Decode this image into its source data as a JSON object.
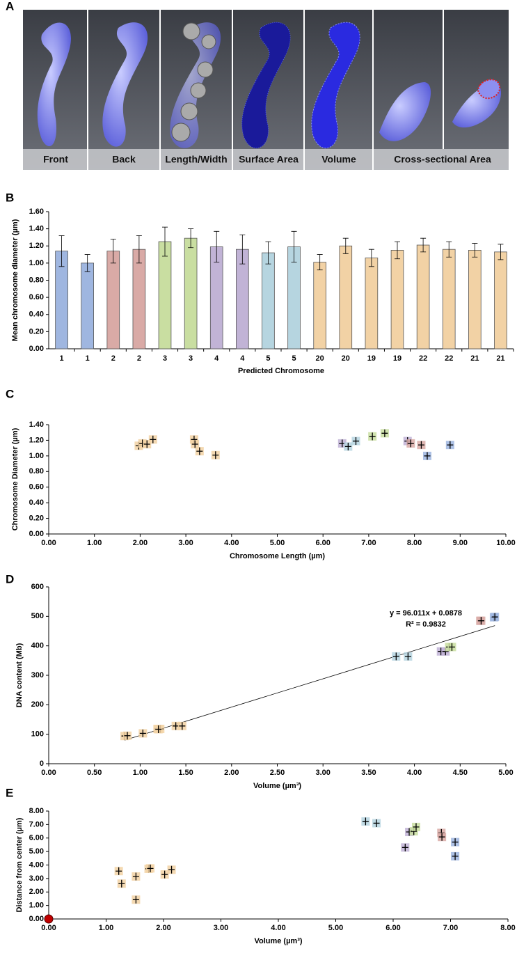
{
  "panel_a": {
    "label": "A",
    "captions": [
      "Front",
      "Back",
      "Length/Width",
      "Surface Area",
      "Volume",
      "Cross-sectional Area"
    ]
  },
  "chart_data": [
    {
      "type": "bar",
      "panel_label": "B",
      "y_label": "Mean chromosome diameter (µm)",
      "x_label": "Predicted Chromosome",
      "categories": [
        "1",
        "1",
        "2",
        "2",
        "3",
        "3",
        "4",
        "4",
        "5",
        "5",
        "20",
        "20",
        "19",
        "19",
        "22",
        "22",
        "21",
        "21"
      ],
      "values": [
        1.14,
        1.0,
        1.14,
        1.16,
        1.25,
        1.29,
        1.19,
        1.16,
        1.12,
        1.19,
        1.01,
        1.2,
        1.06,
        1.15,
        1.21,
        1.16,
        1.15,
        1.13
      ],
      "errors": [
        0.18,
        0.1,
        0.14,
        0.16,
        0.17,
        0.11,
        0.18,
        0.17,
        0.13,
        0.18,
        0.09,
        0.09,
        0.1,
        0.1,
        0.08,
        0.09,
        0.08,
        0.09
      ],
      "colors": [
        "#9fb6e0",
        "#9fb6e0",
        "#d9aaa6",
        "#d9aaa6",
        "#c9dea1",
        "#c9dea1",
        "#c1b3d6",
        "#c1b3d6",
        "#b6d5e0",
        "#b6d5e0",
        "#f2d2a5",
        "#f2d2a5",
        "#f2d2a5",
        "#f2d2a5",
        "#f2d2a5",
        "#f2d2a5",
        "#f2d2a5",
        "#f2d2a5"
      ],
      "ylim": [
        0,
        1.6
      ],
      "yticks": [
        {
          "value": 0,
          "label": "0.00"
        },
        {
          "value": 0.2,
          "label": "0.20"
        },
        {
          "value": 0.4,
          "label": "0.40"
        },
        {
          "value": 0.6,
          "label": "0.60"
        },
        {
          "value": 0.8,
          "label": "0.80"
        },
        {
          "value": 1,
          "label": "1.00"
        },
        {
          "value": 1.2,
          "label": "1.20"
        },
        {
          "value": 1.4,
          "label": "1.40"
        },
        {
          "value": 1.6,
          "label": "1.60"
        }
      ]
    },
    {
      "type": "scatter",
      "panel_label": "C",
      "y_label": "Chromosome Diameter (µm)",
      "x_label": "Chromosome Length (µm)",
      "x": [
        1.97,
        2.05,
        2.15,
        2.28,
        3.18,
        3.2,
        3.3,
        3.65,
        6.42,
        6.55,
        6.72,
        7.08,
        7.35,
        7.85,
        7.92,
        8.15,
        8.28,
        8.78
      ],
      "values": [
        1.13,
        1.16,
        1.15,
        1.21,
        1.21,
        1.15,
        1.06,
        1.01,
        1.16,
        1.12,
        1.19,
        1.25,
        1.29,
        1.19,
        1.16,
        1.14,
        1.0,
        1.14
      ],
      "colors": [
        "#f2d2a5",
        "#f2d2a5",
        "#f2d2a5",
        "#f2d2a5",
        "#f2d2a5",
        "#f2d2a5",
        "#f2d2a5",
        "#f2d2a5",
        "#c1b3d6",
        "#b6d5e0",
        "#b6d5e0",
        "#c9dea1",
        "#c9dea1",
        "#c1b3d6",
        "#d9aaa6",
        "#d9aaa6",
        "#9fb6e0",
        "#9fb6e0"
      ],
      "xlim": [
        0,
        10
      ],
      "ylim": [
        0,
        1.4
      ],
      "xticks": [
        {
          "value": 0,
          "label": "0.00"
        },
        {
          "value": 1,
          "label": "1.00"
        },
        {
          "value": 2,
          "label": "2.00"
        },
        {
          "value": 3,
          "label": "3.00"
        },
        {
          "value": 4,
          "label": "4.00"
        },
        {
          "value": 5,
          "label": "5.00"
        },
        {
          "value": 6,
          "label": "6.00"
        },
        {
          "value": 7,
          "label": "7.00"
        },
        {
          "value": 8,
          "label": "8.00"
        },
        {
          "value": 9,
          "label": "9.00"
        },
        {
          "value": 10,
          "label": "10.00"
        }
      ],
      "yticks": [
        {
          "value": 0,
          "label": "0.00"
        },
        {
          "value": 0.2,
          "label": "0.20"
        },
        {
          "value": 0.4,
          "label": "0.40"
        },
        {
          "value": 0.6,
          "label": "0.60"
        },
        {
          "value": 0.8,
          "label": "0.80"
        },
        {
          "value": 1,
          "label": "1.00"
        },
        {
          "value": 1.2,
          "label": "1.20"
        },
        {
          "value": 1.4,
          "label": "1.40"
        }
      ]
    },
    {
      "type": "scatter",
      "panel_label": "D",
      "y_label": "DNA content (Mb)",
      "x_label": "Volume (µm³)",
      "x": [
        0.83,
        0.86,
        1.03,
        1.19,
        1.22,
        1.39,
        1.46,
        1.2,
        3.8,
        3.93,
        4.29,
        4.34,
        4.38,
        4.41,
        4.72,
        4.73,
        4.87,
        4.88
      ],
      "values": [
        94,
        95,
        103,
        118,
        118,
        128,
        128,
        117,
        364,
        364,
        381,
        381,
        396,
        396,
        485,
        485,
        497,
        498
      ],
      "colors": [
        "#f2d2a5",
        "#f2d2a5",
        "#f2d2a5",
        "#f2d2a5",
        "#f2d2a5",
        "#f2d2a5",
        "#f2d2a5",
        "#f2d2a5",
        "#b6d5e0",
        "#b6d5e0",
        "#c1b3d6",
        "#c1b3d6",
        "#c9dea1",
        "#c9dea1",
        "#d9aaa6",
        "#d9aaa6",
        "#9fb6e0",
        "#9fb6e0"
      ],
      "trendline": {
        "slope": 96.011,
        "intercept": 0.0878
      },
      "annotations": [
        "y = 96.011x + 0.0878",
        "R² = 0.9832"
      ],
      "xlim": [
        0,
        5
      ],
      "ylim": [
        0,
        600
      ],
      "xticks": [
        {
          "value": 0,
          "label": "0.00"
        },
        {
          "value": 0.5,
          "label": "0.50"
        },
        {
          "value": 1,
          "label": "1.00"
        },
        {
          "value": 1.5,
          "label": "1.50"
        },
        {
          "value": 2,
          "label": "2.00"
        },
        {
          "value": 2.5,
          "label": "2.50"
        },
        {
          "value": 3,
          "label": "3.00"
        },
        {
          "value": 3.5,
          "label": "3.50"
        },
        {
          "value": 4,
          "label": "4.00"
        },
        {
          "value": 4.5,
          "label": "4.50"
        },
        {
          "value": 5,
          "label": "5.00"
        }
      ],
      "yticks": [
        0,
        100,
        200,
        300,
        400,
        500,
        600
      ]
    },
    {
      "type": "scatter",
      "panel_label": "E",
      "y_label": "Distance from center (µm)",
      "x_label": "Volume (µm³)",
      "x": [
        1.22,
        1.27,
        1.52,
        1.52,
        1.74,
        1.77,
        2.02,
        2.14,
        5.52,
        5.71,
        6.21,
        6.28,
        6.36,
        6.4,
        6.84,
        6.85,
        7.08,
        7.08
      ],
      "values": [
        3.55,
        2.62,
        3.15,
        1.43,
        3.72,
        3.75,
        3.3,
        3.65,
        7.23,
        7.1,
        5.3,
        6.45,
        6.5,
        6.82,
        6.38,
        6.08,
        5.7,
        4.65
      ],
      "colors": [
        "#f2d2a5",
        "#f2d2a5",
        "#f2d2a5",
        "#f2d2a5",
        "#f2d2a5",
        "#f2d2a5",
        "#f2d2a5",
        "#f2d2a5",
        "#b6d5e0",
        "#b6d5e0",
        "#c1b3d6",
        "#c1b3d6",
        "#c9dea1",
        "#c9dea1",
        "#d9aaa6",
        "#d9aaa6",
        "#9fb6e0",
        "#9fb6e0"
      ],
      "highlight": {
        "x": 0,
        "value": 0,
        "color": "#c00000"
      },
      "xlim": [
        0,
        8
      ],
      "ylim": [
        0,
        8
      ],
      "xticks": [
        {
          "value": 0,
          "label": "0.00"
        },
        {
          "value": 1,
          "label": "1.00"
        },
        {
          "value": 2,
          "label": "2.00"
        },
        {
          "value": 3,
          "label": "3.00"
        },
        {
          "value": 4,
          "label": "4.00"
        },
        {
          "value": 5,
          "label": "5.00"
        },
        {
          "value": 6,
          "label": "6.00"
        },
        {
          "value": 7,
          "label": "7.00"
        },
        {
          "value": 8,
          "label": "8.00"
        }
      ],
      "yticks": [
        {
          "value": 0,
          "label": "0.00"
        },
        {
          "value": 1,
          "label": "1.00"
        },
        {
          "value": 2,
          "label": "2.00"
        },
        {
          "value": 3,
          "label": "3.00"
        },
        {
          "value": 4,
          "label": "4.00"
        },
        {
          "value": 5,
          "label": "5.00"
        },
        {
          "value": 6,
          "label": "6.00"
        },
        {
          "value": 7,
          "label": "7.00"
        },
        {
          "value": 8,
          "label": "8.00"
        }
      ]
    }
  ]
}
